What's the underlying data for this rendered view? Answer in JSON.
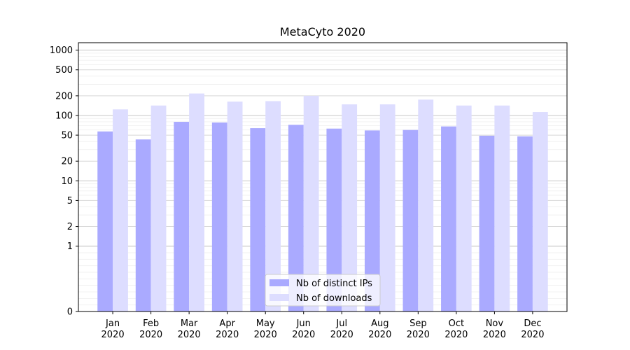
{
  "chart_data": {
    "type": "bar",
    "title": "MetaCyto 2020",
    "xlabel": "",
    "ylabel": "",
    "y_scale": "symlog",
    "ylim": [
      0,
      1300
    ],
    "y_ticks": [
      0,
      1,
      2,
      5,
      10,
      20,
      50,
      100,
      200,
      500,
      1000
    ],
    "y_tick_labels": [
      "0",
      "1",
      "2",
      "5",
      "10",
      "20",
      "50",
      "100",
      "200",
      "500",
      "1000"
    ],
    "grid": "horizontal",
    "legend_position": "lower-center",
    "categories": [
      [
        "Jan",
        "2020"
      ],
      [
        "Feb",
        "2020"
      ],
      [
        "Mar",
        "2020"
      ],
      [
        "Apr",
        "2020"
      ],
      [
        "May",
        "2020"
      ],
      [
        "Jun",
        "2020"
      ],
      [
        "Jul",
        "2020"
      ],
      [
        "Aug",
        "2020"
      ],
      [
        "Sep",
        "2020"
      ],
      [
        "Oct",
        "2020"
      ],
      [
        "Nov",
        "2020"
      ],
      [
        "Dec",
        "2020"
      ]
    ],
    "series": [
      {
        "name": "Nb of distinct IPs",
        "color": "#aaaaff",
        "values": [
          57,
          43,
          80,
          78,
          64,
          72,
          63,
          59,
          60,
          68,
          49,
          48
        ]
      },
      {
        "name": "Nb of downloads",
        "color": "#ddddff",
        "values": [
          124,
          142,
          217,
          163,
          166,
          200,
          148,
          148,
          175,
          142,
          142,
          113
        ]
      }
    ]
  }
}
